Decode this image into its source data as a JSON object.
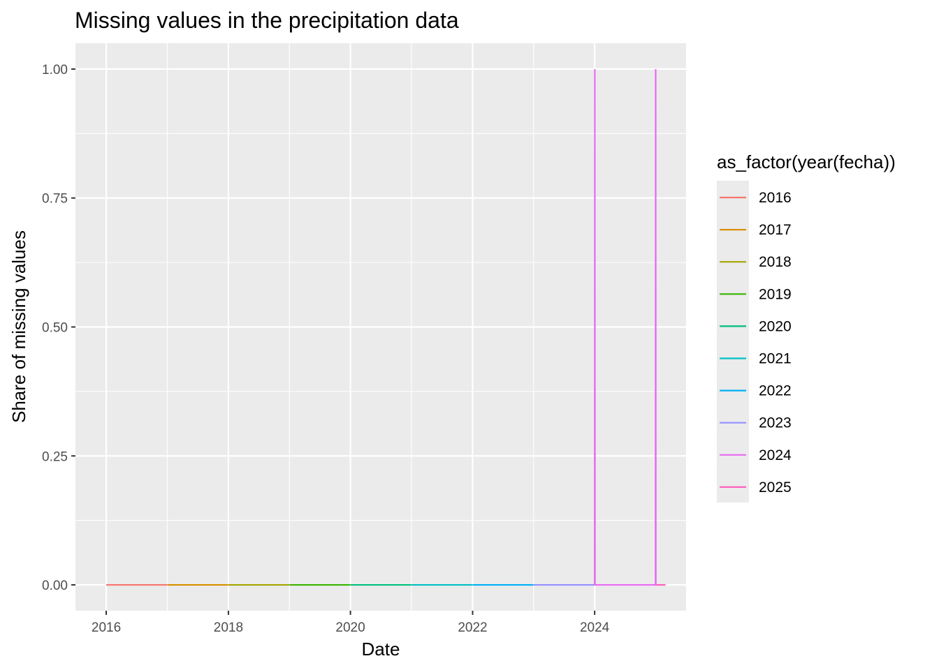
{
  "chart_data": {
    "type": "line",
    "title": "Missing values in the precipitation data",
    "xlabel": "Date",
    "ylabel": "Share of missing values",
    "xlim": [
      "2015-07-01",
      "2025-07-01"
    ],
    "ylim": [
      -0.05,
      1.05
    ],
    "x_ticks": [
      "2016",
      "2018",
      "2020",
      "2022",
      "2024"
    ],
    "y_ticks": [
      "0.00",
      "0.25",
      "0.50",
      "0.75",
      "1.00"
    ],
    "grid": true,
    "legend": {
      "title": "as_factor(year(fecha))",
      "placement": "right"
    },
    "series": [
      {
        "name": "2016",
        "color": "#F8766D",
        "points": [
          [
            "2016-01-01",
            0
          ],
          [
            "2016-12-31",
            0
          ]
        ]
      },
      {
        "name": "2017",
        "color": "#D89000",
        "points": [
          [
            "2017-01-01",
            0
          ],
          [
            "2017-12-31",
            0
          ]
        ]
      },
      {
        "name": "2018",
        "color": "#A3A500",
        "points": [
          [
            "2018-01-01",
            0
          ],
          [
            "2018-12-31",
            0
          ]
        ]
      },
      {
        "name": "2019",
        "color": "#39B600",
        "points": [
          [
            "2019-01-01",
            0
          ],
          [
            "2019-12-31",
            0
          ]
        ]
      },
      {
        "name": "2020",
        "color": "#00BF7D",
        "points": [
          [
            "2020-01-01",
            0
          ],
          [
            "2020-12-31",
            0
          ]
        ]
      },
      {
        "name": "2021",
        "color": "#00BFC4",
        "points": [
          [
            "2021-01-01",
            0
          ],
          [
            "2021-12-31",
            0
          ]
        ]
      },
      {
        "name": "2022",
        "color": "#00B0F6",
        "points": [
          [
            "2022-01-01",
            0
          ],
          [
            "2022-12-31",
            0
          ]
        ]
      },
      {
        "name": "2023",
        "color": "#9590FF",
        "points": [
          [
            "2023-01-01",
            0
          ],
          [
            "2023-12-31",
            0
          ]
        ]
      },
      {
        "name": "2024",
        "color": "#E76BF3",
        "points": [
          [
            "2024-01-01",
            0
          ],
          [
            "2024-01-02",
            1
          ],
          [
            "2024-01-03",
            0
          ],
          [
            "2024-12-30",
            0
          ],
          [
            "2024-12-31",
            1
          ],
          [
            "2025-01-01",
            0
          ]
        ]
      },
      {
        "name": "2025",
        "color": "#FF62BC",
        "points": [
          [
            "2025-01-01",
            0
          ],
          [
            "2025-02-28",
            0
          ]
        ]
      }
    ]
  }
}
